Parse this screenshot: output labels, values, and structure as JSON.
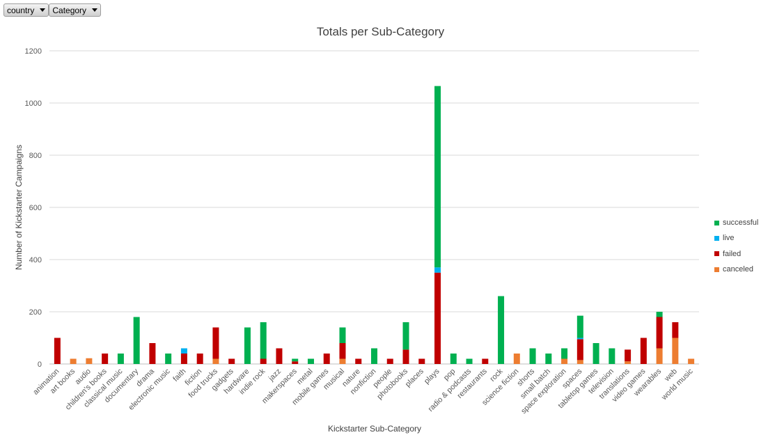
{
  "filters": [
    {
      "label": "country"
    },
    {
      "label": "Category"
    }
  ],
  "chart_data": {
    "type": "bar",
    "stacked": true,
    "title": "Totals per Sub-Category",
    "xlabel": "Kickstarter Sub-Category",
    "ylabel": "Number of Kickstarter Campaigns",
    "ylim": [
      0,
      1200
    ],
    "yticks": [
      0,
      200,
      400,
      600,
      800,
      1000,
      1200
    ],
    "grid": true,
    "legend_position": "right",
    "categories": [
      "animation",
      "art books",
      "audio",
      "children's books",
      "classical music",
      "documentary",
      "drama",
      "electronic music",
      "faith",
      "fiction",
      "food trucks",
      "gadgets",
      "hardware",
      "indie rock",
      "jazz",
      "makerspaces",
      "metal",
      "mobile games",
      "musical",
      "nature",
      "nonfiction",
      "people",
      "photobooks",
      "places",
      "plays",
      "pop",
      "radio & podcasts",
      "restaurants",
      "rock",
      "science fiction",
      "shorts",
      "small batch",
      "space exploration",
      "spaces",
      "tabletop games",
      "television",
      "translations",
      "video games",
      "wearables",
      "web",
      "world music"
    ],
    "series": [
      {
        "name": "canceled",
        "color": "#ed7d31",
        "values": [
          0,
          20,
          22,
          0,
          0,
          0,
          0,
          0,
          0,
          0,
          20,
          0,
          0,
          0,
          0,
          0,
          0,
          0,
          20,
          0,
          0,
          0,
          0,
          0,
          0,
          0,
          0,
          0,
          0,
          40,
          0,
          0,
          20,
          15,
          0,
          0,
          10,
          0,
          60,
          100,
          20
        ]
      },
      {
        "name": "failed",
        "color": "#c00000",
        "values": [
          100,
          0,
          0,
          40,
          0,
          0,
          80,
          0,
          40,
          40,
          120,
          20,
          0,
          20,
          60,
          10,
          0,
          40,
          60,
          20,
          0,
          20,
          55,
          20,
          350,
          0,
          0,
          20,
          0,
          0,
          0,
          0,
          0,
          80,
          0,
          0,
          45,
          100,
          120,
          60,
          0
        ]
      },
      {
        "name": "live",
        "color": "#00b0f0",
        "values": [
          0,
          0,
          0,
          0,
          0,
          0,
          0,
          0,
          20,
          0,
          0,
          0,
          0,
          0,
          0,
          0,
          0,
          0,
          0,
          0,
          0,
          0,
          0,
          0,
          20,
          0,
          0,
          0,
          0,
          0,
          0,
          0,
          0,
          5,
          0,
          0,
          0,
          0,
          0,
          0,
          0
        ]
      },
      {
        "name": "successful",
        "color": "#00b050",
        "values": [
          0,
          0,
          0,
          0,
          40,
          180,
          0,
          40,
          0,
          0,
          0,
          0,
          140,
          140,
          0,
          10,
          20,
          0,
          60,
          0,
          60,
          0,
          105,
          0,
          695,
          40,
          20,
          0,
          260,
          0,
          60,
          40,
          40,
          85,
          80,
          60,
          0,
          0,
          20,
          0,
          0
        ]
      }
    ],
    "legend_order": [
      "successful",
      "live",
      "failed",
      "canceled"
    ]
  }
}
